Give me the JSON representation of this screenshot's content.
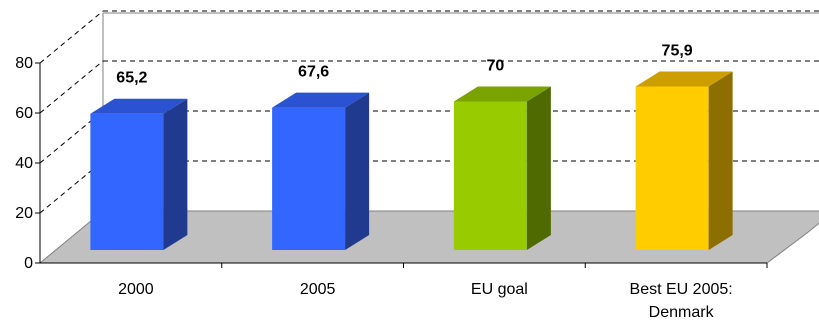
{
  "chart_data": {
    "type": "bar",
    "title": "",
    "xlabel": "",
    "ylabel": "",
    "ylim": [
      0,
      80
    ],
    "yticks": [
      "0",
      "20",
      "40",
      "60",
      "80"
    ],
    "categories": [
      {
        "lines": [
          "2000"
        ]
      },
      {
        "lines": [
          "2005"
        ]
      },
      {
        "lines": [
          "EU goal"
        ]
      },
      {
        "lines": [
          "Best EU 2005:",
          "Denmark"
        ]
      }
    ],
    "values": [
      65.2,
      67.6,
      70,
      75.9
    ],
    "data_labels": [
      "65,2",
      "67,6",
      "70",
      "75,9"
    ],
    "bar_colors": [
      {
        "front": "#3366FF",
        "side": "#1F3A8F",
        "top": "#2A52D1"
      },
      {
        "front": "#3366FF",
        "side": "#1F3A8F",
        "top": "#2A52D1"
      },
      {
        "front": "#99CC00",
        "side": "#4F6B00",
        "top": "#7AA300"
      },
      {
        "front": "#FFCC00",
        "side": "#8C6F00",
        "top": "#CC9E00"
      }
    ],
    "grid": true,
    "gridline_style": "dashed",
    "legend": "none",
    "style": "3d"
  }
}
